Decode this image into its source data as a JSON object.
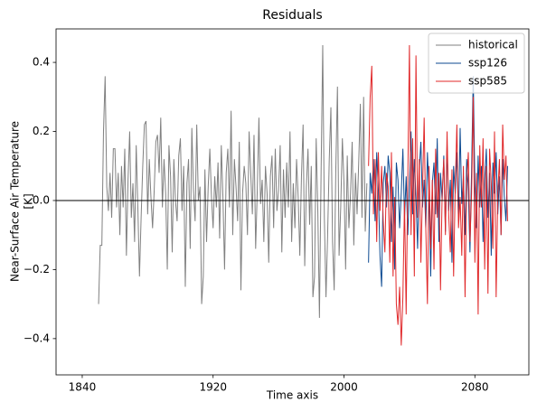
{
  "chart_data": {
    "type": "line",
    "title": "Residuals",
    "xlabel": "Time axis",
    "ylabel": [
      "Near-Surface Air Temperature",
      "[K]"
    ],
    "xlim": [
      1824,
      2113
    ],
    "ylim": [
      -0.505,
      0.497
    ],
    "xticks": [
      1840,
      1920,
      2000,
      2080
    ],
    "yticks": [
      {
        "value": -0.4,
        "label": "−0.4"
      },
      {
        "value": -0.2,
        "label": "−0.2"
      },
      {
        "value": 0,
        "label": "0.0"
      },
      0.2,
      0.4
    ],
    "hline": 0,
    "hline_color": "#000000",
    "legend": "upper right",
    "series": [
      {
        "name": "historical",
        "color": "#808080",
        "x": [
          1850,
          1851,
          1852,
          1853,
          1854,
          1855,
          1856,
          1857,
          1858,
          1859,
          1860,
          1861,
          1862,
          1863,
          1864,
          1865,
          1866,
          1867,
          1868,
          1869,
          1870,
          1871,
          1872,
          1873,
          1874,
          1875,
          1876,
          1877,
          1878,
          1879,
          1880,
          1881,
          1882,
          1883,
          1884,
          1885,
          1886,
          1887,
          1888,
          1889,
          1890,
          1891,
          1892,
          1893,
          1894,
          1895,
          1896,
          1897,
          1898,
          1899,
          1900,
          1901,
          1902,
          1903,
          1904,
          1905,
          1906,
          1907,
          1908,
          1909,
          1910,
          1911,
          1912,
          1913,
          1914,
          1915,
          1916,
          1917,
          1918,
          1919,
          1920,
          1921,
          1922,
          1923,
          1924,
          1925,
          1926,
          1927,
          1928,
          1929,
          1930,
          1931,
          1932,
          1933,
          1934,
          1935,
          1936,
          1937,
          1938,
          1939,
          1940,
          1941,
          1942,
          1943,
          1944,
          1945,
          1946,
          1947,
          1948,
          1949,
          1950,
          1951,
          1952,
          1953,
          1954,
          1955,
          1956,
          1957,
          1958,
          1959,
          1960,
          1961,
          1962,
          1963,
          1964,
          1965,
          1966,
          1967,
          1968,
          1969,
          1970,
          1971,
          1972,
          1973,
          1974,
          1975,
          1976,
          1977,
          1978,
          1979,
          1980,
          1981,
          1982,
          1983,
          1984,
          1985,
          1986,
          1987,
          1988,
          1989,
          1990,
          1991,
          1992,
          1993,
          1994,
          1995,
          1996,
          1997,
          1998,
          1999,
          2000,
          2001,
          2002,
          2003,
          2004,
          2005,
          2006,
          2007,
          2008,
          2009,
          2010,
          2011,
          2012,
          2013,
          2014
        ],
        "values": [
          -0.3,
          -0.13,
          -0.13,
          0.2,
          0.36,
          0.04,
          -0.03,
          0.08,
          -0.05,
          0.15,
          0.15,
          -0.02,
          0.08,
          -0.1,
          0.1,
          -0.02,
          0.15,
          -0.16,
          0.06,
          0.2,
          -0.05,
          0.05,
          -0.12,
          0.16,
          -0.02,
          -0.22,
          -0.05,
          0.1,
          0.22,
          0.23,
          -0.04,
          0.12,
          0.01,
          -0.08,
          0.03,
          0.17,
          0.19,
          0.08,
          0.24,
          -0.02,
          0.12,
          0.02,
          -0.2,
          0.16,
          0.07,
          -0.15,
          0.12,
          0.0,
          -0.06,
          0.13,
          0.18,
          -0.03,
          0.1,
          -0.25,
          0.05,
          0.12,
          -0.14,
          0.21,
          0.03,
          -0.06,
          0.22,
          0.0,
          0.04,
          -0.3,
          -0.22,
          0.09,
          -0.12,
          0.04,
          0.15,
          0.01,
          -0.08,
          0.07,
          -0.02,
          0.11,
          -0.11,
          0.16,
          0.01,
          -0.2,
          0.08,
          0.15,
          -0.02,
          0.26,
          -0.1,
          0.12,
          0.04,
          -0.06,
          0.17,
          -0.26,
          0.02,
          0.1,
          0.05,
          -0.1,
          0.2,
          0.08,
          -0.04,
          0.19,
          -0.14,
          0.03,
          0.24,
          -0.01,
          0.06,
          -0.12,
          0.1,
          0.02,
          -0.18,
          0.07,
          0.13,
          -0.08,
          0.15,
          -0.03,
          0.03,
          0.16,
          -0.15,
          0.09,
          -0.05,
          0.11,
          -0.02,
          0.2,
          -0.12,
          0.05,
          -0.08,
          0.12,
          0.01,
          -0.16,
          0.07,
          0.22,
          -0.19,
          0.04,
          0.15,
          -0.07,
          0.1,
          -0.28,
          -0.22,
          0.18,
          -0.03,
          -0.34,
          0.08,
          0.45,
          -0.05,
          -0.28,
          -0.1,
          0.12,
          0.27,
          -0.12,
          -0.26,
          0.09,
          0.33,
          -0.16,
          -0.02,
          0.18,
          0.05,
          -0.2,
          0.13,
          -0.08,
          0.02,
          0.17,
          -0.13,
          0.08,
          -0.04,
          0.11,
          0.28,
          -0.05,
          0.3,
          -0.09,
          0.05
        ]
      },
      {
        "name": "ssp126",
        "color": "#0d4a91",
        "x": [
          2015,
          2016,
          2017,
          2018,
          2019,
          2020,
          2021,
          2022,
          2023,
          2024,
          2025,
          2026,
          2027,
          2028,
          2029,
          2030,
          2031,
          2032,
          2033,
          2034,
          2035,
          2036,
          2037,
          2038,
          2039,
          2040,
          2041,
          2042,
          2043,
          2044,
          2045,
          2046,
          2047,
          2048,
          2049,
          2050,
          2051,
          2052,
          2053,
          2054,
          2055,
          2056,
          2057,
          2058,
          2059,
          2060,
          2061,
          2062,
          2063,
          2064,
          2065,
          2066,
          2067,
          2068,
          2069,
          2070,
          2071,
          2072,
          2073,
          2074,
          2075,
          2076,
          2077,
          2078,
          2079,
          2080,
          2081,
          2082,
          2083,
          2084,
          2085,
          2086,
          2087,
          2088,
          2089,
          2090,
          2091,
          2092,
          2093,
          2094,
          2095,
          2096,
          2097,
          2098,
          2099,
          2100
        ],
        "values": [
          -0.18,
          0.08,
          0.02,
          0.12,
          -0.06,
          0.14,
          0.03,
          -0.16,
          -0.25,
          0.05,
          0.1,
          -0.02,
          0.13,
          0.08,
          -0.12,
          0.04,
          -0.2,
          0.11,
          0.06,
          -0.08,
          0.02,
          0.15,
          -0.05,
          0.07,
          -0.1,
          0.04,
          0.2,
          -0.04,
          0.12,
          0.01,
          -0.14,
          0.09,
          0.17,
          -0.02,
          0.06,
          -0.08,
          0.14,
          0.02,
          -0.22,
          0.05,
          0.11,
          -0.04,
          0.18,
          -0.12,
          0.08,
          0.0,
          0.13,
          -0.09,
          0.16,
          -0.03,
          0.06,
          -0.18,
          0.1,
          0.02,
          0.14,
          -0.06,
          0.21,
          -0.01,
          0.07,
          -0.1,
          0.12,
          0.03,
          -0.15,
          0.09,
          0.36,
          0.05,
          -0.08,
          0.13,
          -0.02,
          0.1,
          -0.12,
          0.06,
          0.15,
          -0.05,
          0.08,
          -0.16,
          0.11,
          0.02,
          0.14,
          -0.04,
          0.07,
          -0.1,
          0.12,
          0.01,
          -0.06,
          0.1
        ]
      },
      {
        "name": "ssp585",
        "color": "#e0282a",
        "x": [
          2015,
          2016,
          2017,
          2018,
          2019,
          2020,
          2021,
          2022,
          2023,
          2024,
          2025,
          2026,
          2027,
          2028,
          2029,
          2030,
          2031,
          2032,
          2033,
          2034,
          2035,
          2036,
          2037,
          2038,
          2039,
          2040,
          2041,
          2042,
          2043,
          2044,
          2045,
          2046,
          2047,
          2048,
          2049,
          2050,
          2051,
          2052,
          2053,
          2054,
          2055,
          2056,
          2057,
          2058,
          2059,
          2060,
          2061,
          2062,
          2063,
          2064,
          2065,
          2066,
          2067,
          2068,
          2069,
          2070,
          2071,
          2072,
          2073,
          2074,
          2075,
          2076,
          2077,
          2078,
          2079,
          2080,
          2081,
          2082,
          2083,
          2084,
          2085,
          2086,
          2087,
          2088,
          2089,
          2090,
          2091,
          2092,
          2093,
          2094,
          2095,
          2096,
          2097,
          2098,
          2099,
          2100
        ],
        "values": [
          0.1,
          0.3,
          0.39,
          -0.04,
          0.12,
          -0.12,
          0.14,
          -0.03,
          0.1,
          -0.06,
          -0.15,
          0.08,
          0.04,
          -0.18,
          0.14,
          -0.22,
          0.01,
          -0.3,
          -0.36,
          -0.25,
          -0.42,
          -0.28,
          0.0,
          -0.33,
          0.06,
          0.45,
          -0.1,
          0.18,
          -0.22,
          0.42,
          -0.05,
          0.12,
          -0.18,
          0.03,
          0.24,
          -0.08,
          -0.3,
          0.1,
          -0.14,
          0.06,
          -0.2,
          0.15,
          -0.05,
          0.08,
          -0.26,
          0.02,
          0.12,
          -0.1,
          0.2,
          -0.04,
          -0.15,
          0.09,
          -0.22,
          0.04,
          0.22,
          -0.08,
          0.01,
          -0.16,
          0.1,
          -0.28,
          0.05,
          0.14,
          -0.12,
          0.02,
          0.3,
          -0.18,
          0.08,
          -0.33,
          0.16,
          -0.02,
          0.18,
          -0.2,
          0.1,
          -0.27,
          0.15,
          0.05,
          -0.14,
          0.2,
          -0.28,
          0.02,
          0.12,
          -0.1,
          0.22,
          0.06,
          0.13,
          -0.06
        ]
      }
    ]
  }
}
